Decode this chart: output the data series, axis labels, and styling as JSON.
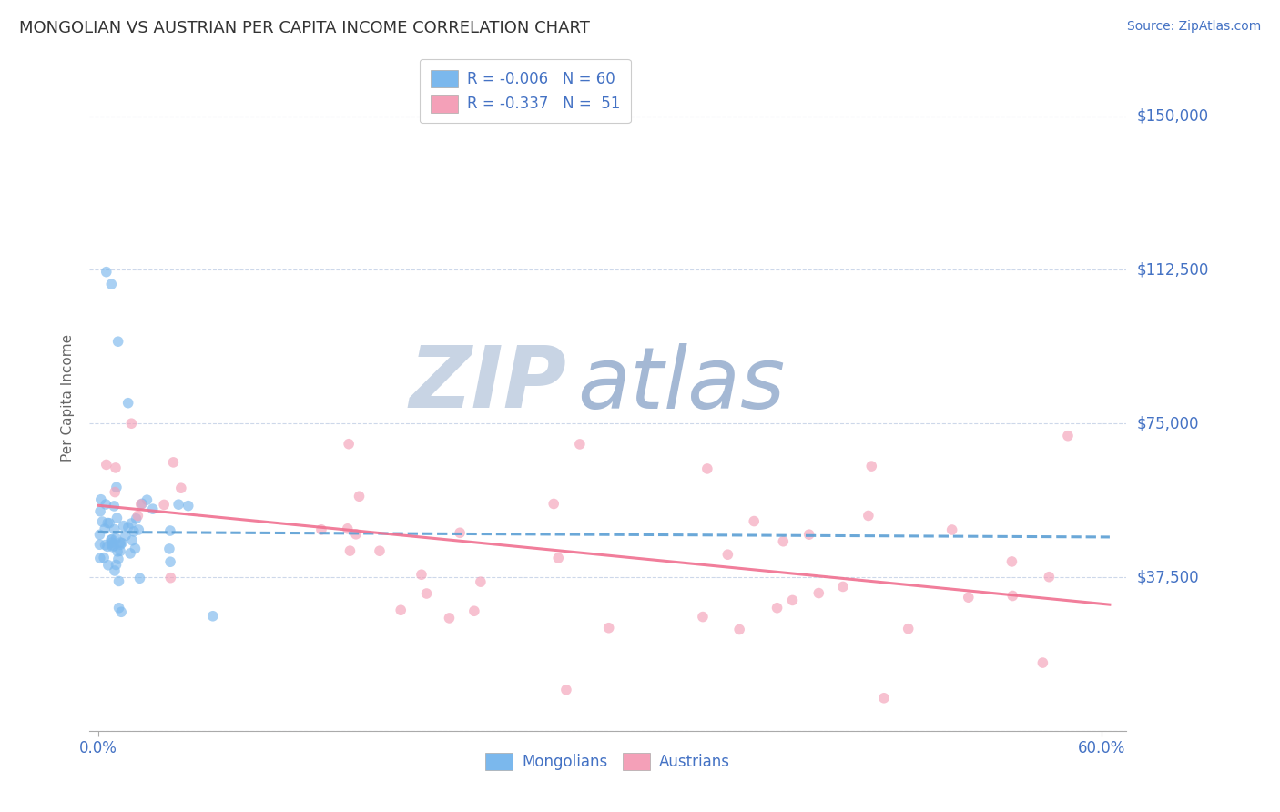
{
  "title": "MONGOLIAN VS AUSTRIAN PER CAPITA INCOME CORRELATION CHART",
  "source": "Source: ZipAtlas.com",
  "ylabel": "Per Capita Income",
  "xlim": [
    -0.005,
    0.615
  ],
  "ylim": [
    0,
    162500
  ],
  "yticks": [
    0,
    37500,
    75000,
    112500,
    150000
  ],
  "ytick_labels": [
    "",
    "$37,500",
    "$75,000",
    "$112,500",
    "$150,000"
  ],
  "xtick_positions": [
    0.0,
    0.6
  ],
  "xtick_labels": [
    "0.0%",
    "60.0%"
  ],
  "mongolian_color": "#7bb8ed",
  "austrian_color": "#f4a0b8",
  "mongolian_line_color": "#5b9fd4",
  "austrian_line_color": "#f07090",
  "label_color": "#4472c4",
  "r_mongolian": -0.006,
  "n_mongolian": 60,
  "r_austrian": -0.337,
  "n_austrian": 51,
  "watermark_zip": "ZIP",
  "watermark_atlas": "atlas",
  "watermark_color_zip": "#d0d8e8",
  "watermark_color_atlas": "#a8bcd8",
  "background_color": "#ffffff",
  "grid_color": "#c8d4e8",
  "tick_label_color": "#4472c4",
  "ylabel_color": "#666666",
  "title_color": "#333333",
  "title_fontsize": 13,
  "source_fontsize": 10
}
